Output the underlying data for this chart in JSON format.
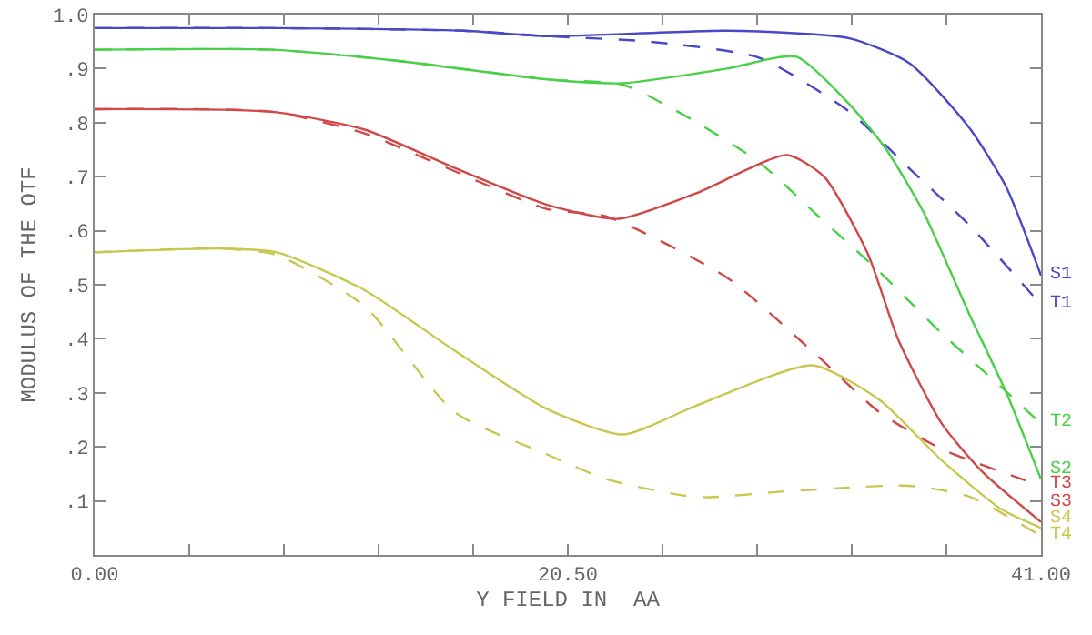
{
  "chart_data": {
    "type": "line",
    "xlabel": "Y FIELD IN  AA",
    "ylabel": "MODULUS OF THE OTF",
    "xlim": [
      0,
      41
    ],
    "ylim": [
      0,
      1
    ],
    "xticks": [
      {
        "value": 0,
        "label": "0.00"
      },
      {
        "value": 4.1,
        "label": null
      },
      {
        "value": 8.2,
        "label": null
      },
      {
        "value": 12.3,
        "label": null
      },
      {
        "value": 16.4,
        "label": null
      },
      {
        "value": 20.5,
        "label": "20.50"
      },
      {
        "value": 24.6,
        "label": null
      },
      {
        "value": 28.7,
        "label": null
      },
      {
        "value": 32.8,
        "label": null
      },
      {
        "value": 36.9,
        "label": null
      },
      {
        "value": 41,
        "label": "41.00"
      }
    ],
    "yticks": [
      {
        "value": 0.1,
        "label": ".1"
      },
      {
        "value": 0.2,
        "label": ".2"
      },
      {
        "value": 0.3,
        "label": ".3"
      },
      {
        "value": 0.4,
        "label": ".4"
      },
      {
        "value": 0.5,
        "label": ".5"
      },
      {
        "value": 0.6,
        "label": ".6"
      },
      {
        "value": 0.7,
        "label": ".7"
      },
      {
        "value": 0.8,
        "label": ".8"
      },
      {
        "value": 0.9,
        "label": ".9"
      },
      {
        "value": 1,
        "label": "1.0"
      }
    ],
    "grid": false,
    "marker": "none",
    "series": [
      {
        "name": "S1",
        "color": "#4848c8",
        "line_style": "solid",
        "x": [
          0,
          8,
          16,
          19.6,
          27.4,
          32.7,
          35.3,
          37.9,
          39.5,
          41
        ],
        "values": [
          0.975,
          0.975,
          0.97,
          0.96,
          0.97,
          0.956,
          0.91,
          0.79,
          0.68,
          0.517
        ]
      },
      {
        "name": "T1",
        "color": "#4848c8",
        "line_style": "dashed",
        "x": [
          0,
          8,
          16,
          19.6,
          24,
          28.8,
          32.7,
          35.3,
          37.9,
          41
        ],
        "values": [
          0.975,
          0.975,
          0.97,
          0.96,
          0.95,
          0.92,
          0.82,
          0.715,
          0.61,
          0.463
        ]
      },
      {
        "name": "S2",
        "color": "#48d048",
        "line_style": "solid",
        "x": [
          0,
          7.7,
          13,
          19.6,
          22.9,
          27.4,
          30.4,
          32.7,
          34.3,
          35.9,
          37.9,
          39.5,
          41
        ],
        "values": [
          0.935,
          0.935,
          0.915,
          0.88,
          0.873,
          0.9,
          0.922,
          0.834,
          0.75,
          0.635,
          0.445,
          0.3,
          0.14
        ]
      },
      {
        "name": "T2",
        "color": "#48d048",
        "line_style": "dashed",
        "x": [
          0,
          7.7,
          13,
          19.6,
          22.9,
          26.1,
          28.8,
          31.4,
          34,
          36.7,
          39.3,
          41
        ],
        "values": [
          0.935,
          0.935,
          0.915,
          0.88,
          0.87,
          0.8,
          0.726,
          0.625,
          0.524,
          0.41,
          0.31,
          0.243
        ]
      },
      {
        "name": "S3",
        "color": "#d04848",
        "line_style": "solid",
        "x": [
          0,
          7.7,
          11.7,
          15.6,
          19.6,
          22.7,
          26.1,
          30,
          31.6,
          33.5,
          34.8,
          36.7,
          38.5,
          41
        ],
        "values": [
          0.825,
          0.82,
          0.787,
          0.716,
          0.648,
          0.622,
          0.67,
          0.74,
          0.7,
          0.557,
          0.4,
          0.243,
          0.152,
          0.061
        ]
      },
      {
        "name": "T3",
        "color": "#d04848",
        "line_style": "dashed",
        "x": [
          0,
          7.7,
          11.7,
          15.6,
          19.6,
          22.2,
          27.4,
          31.4,
          34,
          36.7,
          41
        ],
        "values": [
          0.825,
          0.82,
          0.78,
          0.71,
          0.64,
          0.626,
          0.513,
          0.365,
          0.264,
          0.196,
          0.128
        ]
      },
      {
        "name": "S4",
        "color": "#c8c850",
        "line_style": "solid",
        "x": [
          0,
          5.5,
          7.9,
          11.7,
          15.6,
          19.6,
          22.9,
          26.1,
          31.1,
          34,
          36.7,
          39.3,
          41
        ],
        "values": [
          0.56,
          0.567,
          0.56,
          0.49,
          0.378,
          0.27,
          0.223,
          0.277,
          0.351,
          0.287,
          0.175,
          0.084,
          0.05
        ]
      },
      {
        "name": "T4",
        "color": "#c8c850",
        "line_style": "dashed",
        "x": [
          0,
          5.5,
          7.9,
          11.7,
          15.6,
          19.6,
          22.2,
          26.1,
          30,
          35.3,
          37.9,
          41
        ],
        "values": [
          0.56,
          0.567,
          0.555,
          0.46,
          0.264,
          0.186,
          0.14,
          0.107,
          0.118,
          0.128,
          0.108,
          0.035
        ]
      }
    ]
  }
}
